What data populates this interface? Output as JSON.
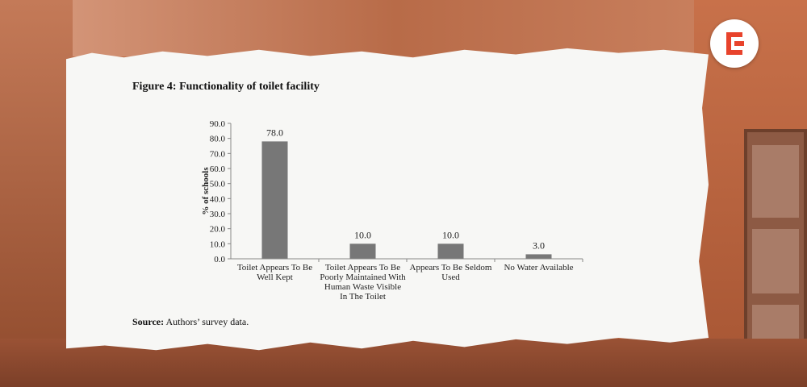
{
  "figure_title": "Figure 4: Functionality of toilet facility",
  "source_label": "Source:",
  "source_text": " Authors’ survey data.",
  "colors": {
    "bar": "#777777",
    "paper": "#f7f7f5",
    "logo_accent": "#e8432c"
  },
  "logo_icon": "brand-e-logo",
  "chart_data": {
    "type": "bar",
    "title": "",
    "xlabel": "",
    "ylabel": "% of schools",
    "ylim": [
      0,
      90
    ],
    "yticks": [
      "0.0",
      "10.0",
      "20.0",
      "30.0",
      "40.0",
      "50.0",
      "60.0",
      "70.0",
      "80.0",
      "90.0"
    ],
    "categories": [
      [
        "Toilet Appears To Be",
        "Well Kept"
      ],
      [
        "Toilet Appears To Be",
        "Poorly Maintained With",
        "Human Waste Visible",
        "In The Toilet"
      ],
      [
        "Appears To Be Seldom",
        "Used"
      ],
      [
        "No Water Available"
      ]
    ],
    "values": [
      78.0,
      10.0,
      10.0,
      3.0
    ],
    "data_labels": [
      "78.0",
      "10.0",
      "10.0",
      "3.0"
    ],
    "grid": false,
    "legend": "none"
  }
}
